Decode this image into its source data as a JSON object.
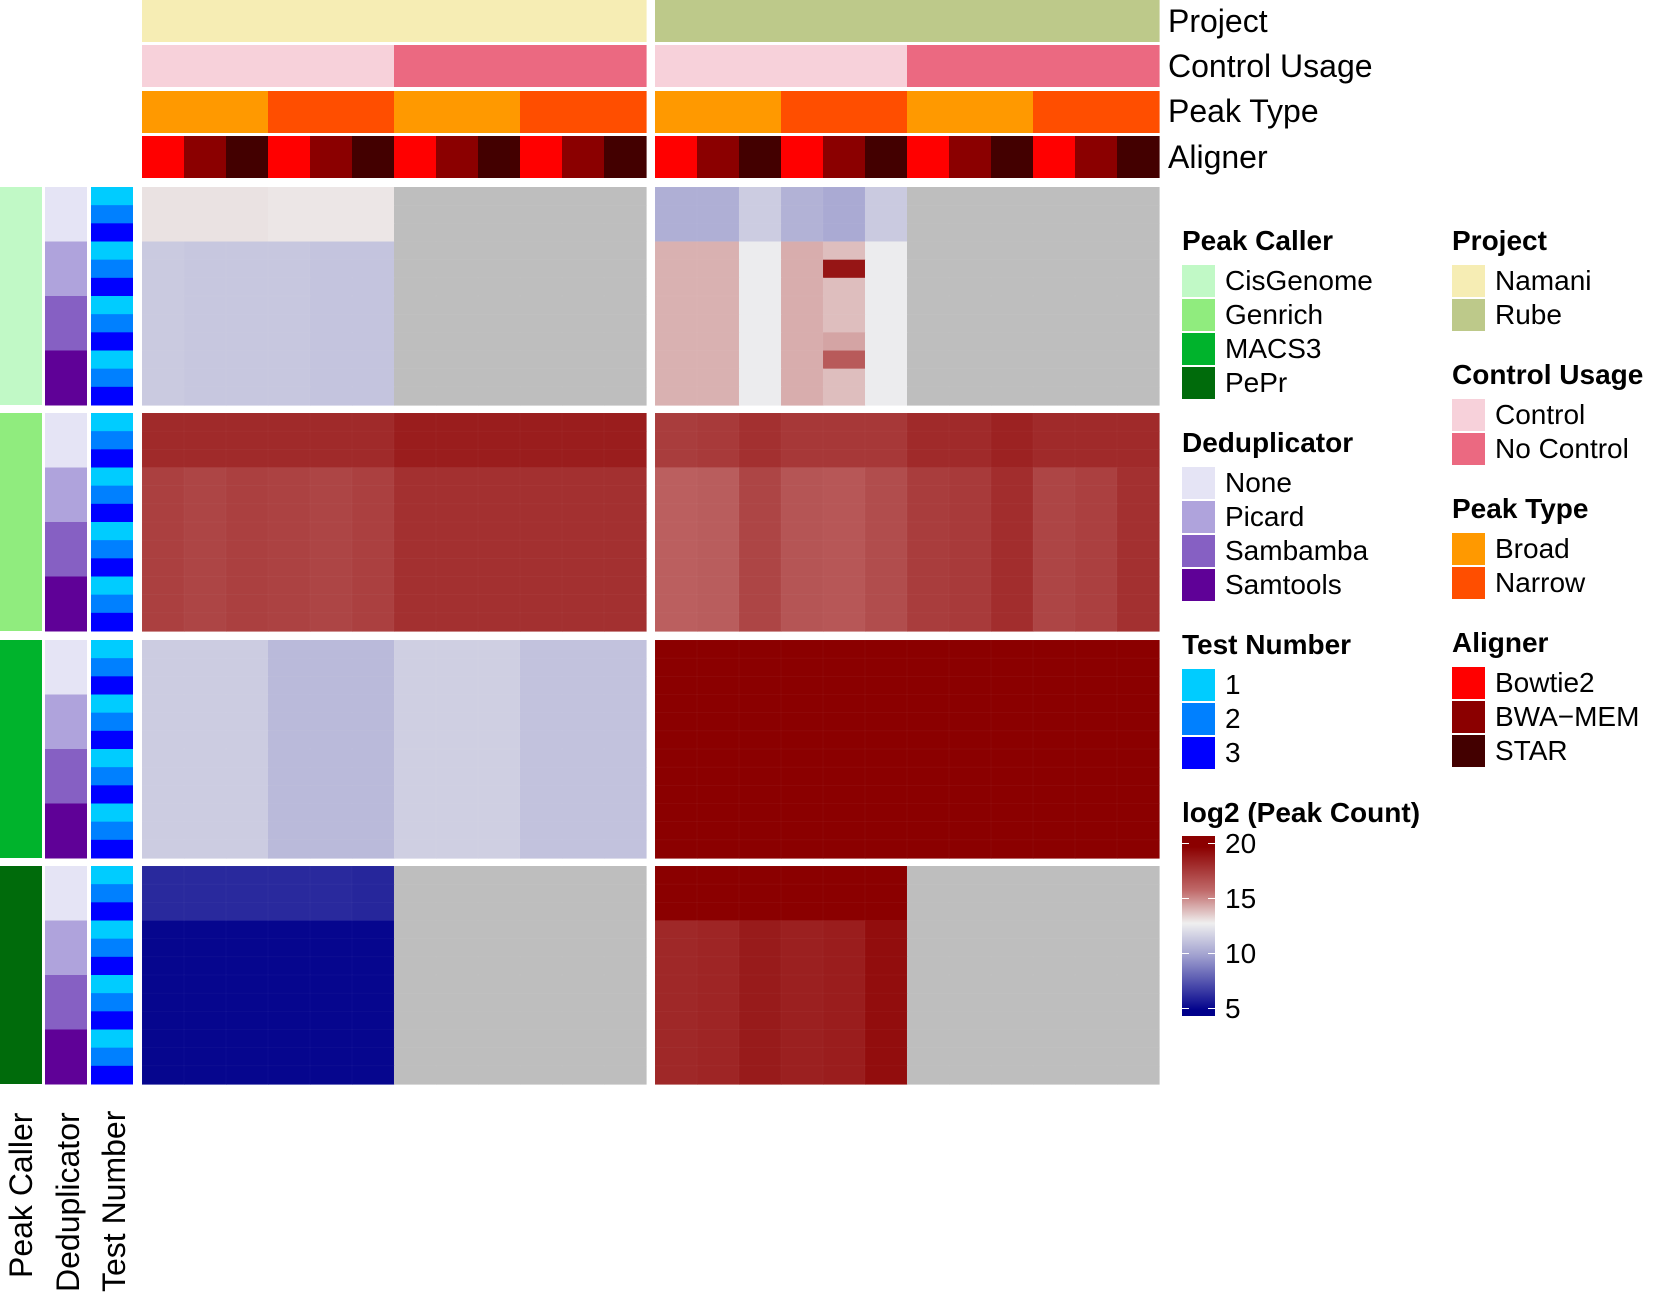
{
  "chart_data": {
    "type": "heatmap",
    "title": "",
    "column_annotations": [
      {
        "name": "Project",
        "values": [
          "Namani",
          "Namani",
          "Namani",
          "Namani",
          "Namani",
          "Namani",
          "Namani",
          "Namani",
          "Namani",
          "Namani",
          "Namani",
          "Namani",
          "Rube",
          "Rube",
          "Rube",
          "Rube",
          "Rube",
          "Rube",
          "Rube",
          "Rube",
          "Rube",
          "Rube",
          "Rube",
          "Rube"
        ]
      },
      {
        "name": "Control Usage",
        "values": [
          "Control",
          "Control",
          "Control",
          "Control",
          "Control",
          "Control",
          "No Control",
          "No Control",
          "No Control",
          "No Control",
          "No Control",
          "No Control",
          "Control",
          "Control",
          "Control",
          "Control",
          "Control",
          "Control",
          "No Control",
          "No Control",
          "No Control",
          "No Control",
          "No Control",
          "No Control"
        ]
      },
      {
        "name": "Peak Type",
        "values": [
          "Broad",
          "Broad",
          "Broad",
          "Narrow",
          "Narrow",
          "Narrow",
          "Broad",
          "Broad",
          "Broad",
          "Narrow",
          "Narrow",
          "Narrow",
          "Broad",
          "Broad",
          "Broad",
          "Narrow",
          "Narrow",
          "Narrow",
          "Broad",
          "Broad",
          "Broad",
          "Narrow",
          "Narrow",
          "Narrow"
        ]
      },
      {
        "name": "Aligner",
        "values": [
          "Bowtie2",
          "BWA−MEM",
          "STAR",
          "Bowtie2",
          "BWA−MEM",
          "STAR",
          "Bowtie2",
          "BWA−MEM",
          "STAR",
          "Bowtie2",
          "BWA−MEM",
          "STAR",
          "Bowtie2",
          "BWA−MEM",
          "STAR",
          "Bowtie2",
          "BWA−MEM",
          "STAR",
          "Bowtie2",
          "BWA−MEM",
          "STAR",
          "Bowtie2",
          "BWA−MEM",
          "STAR"
        ]
      }
    ],
    "row_annotations": [
      {
        "name": "Peak Caller",
        "groups": [
          "CisGenome",
          "Genrich",
          "MACS3",
          "PePr"
        ],
        "rows_per_group": 12
      },
      {
        "name": "Deduplicator",
        "levels": [
          "None",
          "Picard",
          "Sambamba",
          "Samtools"
        ],
        "rows_per_level": 3
      },
      {
        "name": "Test Number",
        "levels": [
          "1",
          "2",
          "3"
        ]
      }
    ],
    "column_split": [
      "Namani",
      "Rube"
    ],
    "row_split": [
      "CisGenome",
      "Genrich",
      "MACS3",
      "PePr"
    ],
    "na_color": "#bebebe",
    "blocks": [
      {
        "row_group": "CisGenome",
        "col_group": "Namani",
        "values": [
          [
            13.3,
            13.3,
            13.3,
            13.2,
            13.2,
            13.2,
            null,
            null,
            null,
            null,
            null,
            null
          ],
          [
            11.6,
            11.5,
            11.5,
            11.5,
            11.4,
            11.4,
            null,
            null,
            null,
            null,
            null,
            null
          ]
        ]
      },
      {
        "row_group": "CisGenome",
        "col_group": "Rube",
        "values": [
          [
            10.6,
            10.6,
            11.7,
            10.7,
            10.4,
            11.6,
            null,
            null,
            null,
            null,
            null,
            null
          ],
          [
            14.4,
            14.4,
            12.9,
            14.5,
            14.1,
            12.9,
            null,
            null,
            null,
            null,
            null,
            null
          ]
        ],
        "outliers": [
          {
            "row": 4,
            "col": 4,
            "value": 19.2
          },
          {
            "row": 8,
            "col": 4,
            "value": 14.7
          },
          {
            "row": 9,
            "col": 4,
            "value": 16.6
          }
        ]
      },
      {
        "row_group": "Genrich",
        "col_group": "Namani",
        "values": [
          [
            18.4,
            18.4,
            18.4,
            18.4,
            18.4,
            18.4,
            18.9,
            18.9,
            18.9,
            18.9,
            18.9,
            18.9
          ],
          [
            17.6,
            17.4,
            17.6,
            17.5,
            17.4,
            17.6,
            18.2,
            18.2,
            18.2,
            18.2,
            18.2,
            18.2
          ]
        ]
      },
      {
        "row_group": "Genrich",
        "col_group": "Rube",
        "values": [
          [
            17.7,
            17.8,
            18.2,
            17.9,
            17.9,
            17.9,
            18.4,
            18.4,
            18.7,
            18.4,
            18.4,
            18.4
          ],
          [
            16.4,
            16.5,
            17.4,
            16.8,
            16.7,
            17.1,
            17.7,
            17.8,
            18.3,
            17.4,
            17.6,
            18.2
          ]
        ]
      },
      {
        "row_group": "MACS3",
        "col_group": "Namani",
        "values": [
          [
            11.7,
            11.7,
            11.7,
            11.0,
            11.0,
            11.0,
            11.8,
            11.8,
            11.8,
            11.3,
            11.3,
            11.3
          ],
          [
            11.7,
            11.7,
            11.7,
            11.0,
            11.0,
            11.0,
            11.8,
            11.8,
            11.8,
            11.3,
            11.3,
            11.3
          ]
        ]
      },
      {
        "row_group": "MACS3",
        "col_group": "Rube",
        "values": [
          [
            20.1,
            20.1,
            20.3,
            20.5,
            20.5,
            20.4,
            20.3,
            20.4,
            20.3,
            20.5,
            20.5,
            20.5
          ],
          [
            20.1,
            20.1,
            20.3,
            20.5,
            20.5,
            20.4,
            20.3,
            20.4,
            20.3,
            20.5,
            20.5,
            20.5
          ]
        ]
      },
      {
        "row_group": "PePr",
        "col_group": "Namani",
        "values": [
          [
            6.3,
            6.3,
            6.3,
            6.3,
            6.3,
            6.2,
            null,
            null,
            null,
            null,
            null,
            null
          ],
          [
            5.2,
            5.2,
            5.2,
            5.2,
            5.2,
            5.2,
            null,
            null,
            null,
            null,
            null,
            null
          ]
        ]
      },
      {
        "row_group": "PePr",
        "col_group": "Rube",
        "values": [
          [
            20.1,
            20.2,
            20.4,
            21.0,
            21.0,
            20.9,
            null,
            null,
            null,
            null,
            null,
            null
          ],
          [
            18.5,
            18.6,
            19.0,
            18.8,
            18.9,
            19.5,
            null,
            null,
            null,
            null,
            null,
            null
          ]
        ]
      }
    ],
    "colorbar": {
      "title": "log2 (Peak Count)",
      "ticks": [
        20,
        15,
        10,
        5
      ],
      "range": [
        4.5,
        21
      ],
      "colors": [
        [
          5,
          "#00008b"
        ],
        [
          10,
          "#9f9fcf"
        ],
        [
          13,
          "#efefef"
        ],
        [
          16,
          "#c06a6a"
        ],
        [
          20,
          "#8b0000"
        ]
      ]
    }
  },
  "labels": {
    "top": [
      "Project",
      "Control Usage",
      "Peak Type",
      "Aligner"
    ],
    "bottom": [
      "Peak Caller",
      "Deduplicator",
      "Test Number"
    ]
  },
  "legends": {
    "peak_caller": {
      "title": "Peak Caller",
      "items": [
        {
          "label": "CisGenome",
          "color": "#c1f9c6"
        },
        {
          "label": "Genrich",
          "color": "#90ec7e"
        },
        {
          "label": "MACS3",
          "color": "#00b32c"
        },
        {
          "label": "PePr",
          "color": "#006b0b"
        }
      ]
    },
    "deduplicator": {
      "title": "Deduplicator",
      "items": [
        {
          "label": "None",
          "color": "#e5e4f5"
        },
        {
          "label": "Picard",
          "color": "#afa3dc"
        },
        {
          "label": "Sambamba",
          "color": "#8660c3"
        },
        {
          "label": "Samtools",
          "color": "#5f0197"
        }
      ]
    },
    "test_number": {
      "title": "Test Number",
      "items": [
        {
          "label": "1",
          "color": "#00ccff"
        },
        {
          "label": "2",
          "color": "#0080ff"
        },
        {
          "label": "3",
          "color": "#0000ff"
        }
      ]
    },
    "colorbar_title": "log2 (Peak Count)",
    "colorbar_ticks": [
      "20",
      "15",
      "10",
      "5"
    ],
    "project": {
      "title": "Project",
      "items": [
        {
          "label": "Namani",
          "color": "#f6edb4"
        },
        {
          "label": "Rube",
          "color": "#bdc98a"
        }
      ]
    },
    "control_usage": {
      "title": "Control Usage",
      "items": [
        {
          "label": "Control",
          "color": "#f7d1da"
        },
        {
          "label": "No Control",
          "color": "#eb6981"
        }
      ]
    },
    "peak_type": {
      "title": "Peak Type",
      "items": [
        {
          "label": "Broad",
          "color": "#ff9900"
        },
        {
          "label": "Narrow",
          "color": "#ff4e00"
        }
      ]
    },
    "aligner": {
      "title": "Aligner",
      "items": [
        {
          "label": "Bowtie2",
          "color": "#ff0000"
        },
        {
          "label": "BWA−MEM",
          "color": "#8b0000"
        },
        {
          "label": "STAR",
          "color": "#430000"
        }
      ]
    }
  }
}
